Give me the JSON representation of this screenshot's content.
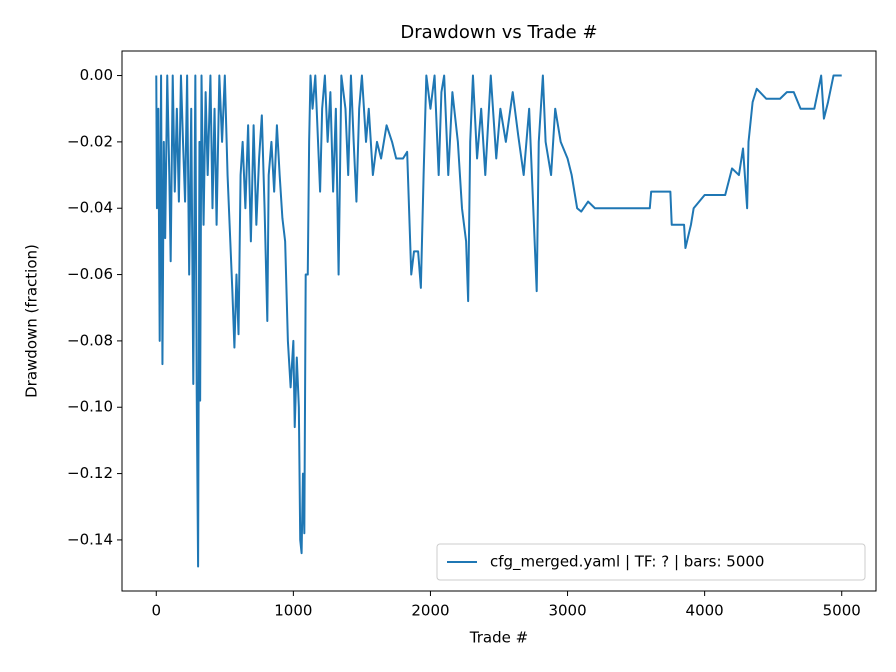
{
  "chart_data": {
    "type": "line",
    "title": "Drawdown vs Trade #",
    "xlabel": "Trade #",
    "ylabel": "Drawdown (fraction)",
    "x": [
      0,
      5,
      15,
      25,
      35,
      45,
      55,
      65,
      80,
      95,
      105,
      120,
      135,
      150,
      165,
      180,
      195,
      210,
      225,
      240,
      255,
      270,
      285,
      295,
      305,
      315,
      320,
      330,
      345,
      360,
      375,
      395,
      410,
      425,
      440,
      460,
      480,
      500,
      520,
      540,
      555,
      570,
      585,
      600,
      615,
      630,
      650,
      670,
      690,
      710,
      730,
      750,
      770,
      790,
      810,
      820,
      840,
      860,
      880,
      900,
      920,
      940,
      960,
      980,
      1000,
      1010,
      1025,
      1040,
      1050,
      1060,
      1070,
      1080,
      1090,
      1105,
      1115,
      1125,
      1140,
      1160,
      1180,
      1195,
      1210,
      1230,
      1250,
      1270,
      1290,
      1310,
      1330,
      1350,
      1380,
      1400,
      1420,
      1440,
      1460,
      1480,
      1500,
      1530,
      1550,
      1580,
      1610,
      1640,
      1680,
      1720,
      1750,
      1800,
      1830,
      1860,
      1880,
      1910,
      1930,
      1950,
      1970,
      2000,
      2030,
      2060,
      2080,
      2100,
      2130,
      2160,
      2200,
      2230,
      2260,
      2275,
      2290,
      2310,
      2340,
      2370,
      2400,
      2440,
      2480,
      2510,
      2550,
      2600,
      2640,
      2680,
      2720,
      2760,
      2775,
      2790,
      2820,
      2840,
      2880,
      2910,
      2950,
      3000,
      3030,
      3070,
      3100,
      3150,
      3200,
      3600,
      3610,
      3750,
      3760,
      3850,
      3860,
      3900,
      3920,
      4000,
      4150,
      4200,
      4250,
      4280,
      4310,
      4320,
      4350,
      4380,
      4450,
      4550,
      4600,
      4650,
      4700,
      4800,
      4850,
      4870,
      4900,
      4940,
      5000
    ],
    "series": [
      {
        "name": "cfg_merged.yaml | TF: ? | bars: 5000",
        "color": "#1f77b4",
        "values": [
          0,
          -0.04,
          -0.01,
          -0.08,
          0,
          -0.087,
          -0.02,
          -0.049,
          0,
          -0.03,
          -0.056,
          0,
          -0.035,
          -0.01,
          -0.038,
          0,
          -0.02,
          -0.038,
          0,
          -0.06,
          -0.01,
          -0.093,
          0,
          -0.095,
          -0.148,
          -0.02,
          -0.098,
          0,
          -0.045,
          -0.005,
          -0.03,
          0,
          -0.04,
          -0.01,
          -0.045,
          0,
          -0.02,
          0,
          -0.03,
          -0.05,
          -0.065,
          -0.082,
          -0.06,
          -0.078,
          -0.03,
          -0.02,
          -0.04,
          -0.015,
          -0.05,
          -0.015,
          -0.045,
          -0.025,
          -0.012,
          -0.04,
          -0.074,
          -0.03,
          -0.02,
          -0.035,
          -0.015,
          -0.03,
          -0.043,
          -0.05,
          -0.08,
          -0.094,
          -0.08,
          -0.106,
          -0.085,
          -0.1,
          -0.14,
          -0.144,
          -0.12,
          -0.138,
          -0.06,
          -0.06,
          -0.02,
          0,
          -0.01,
          0,
          -0.02,
          -0.035,
          -0.01,
          0,
          -0.02,
          -0.005,
          -0.035,
          -0.01,
          -0.06,
          0,
          -0.01,
          -0.03,
          0,
          -0.02,
          -0.038,
          -0.01,
          0,
          -0.02,
          -0.01,
          -0.03,
          -0.02,
          -0.025,
          -0.015,
          -0.02,
          -0.025,
          -0.025,
          -0.023,
          -0.06,
          -0.053,
          -0.053,
          -0.064,
          -0.03,
          0,
          -0.01,
          0,
          -0.03,
          -0.005,
          0,
          -0.03,
          -0.005,
          -0.02,
          -0.04,
          -0.05,
          -0.068,
          -0.02,
          0,
          -0.025,
          -0.01,
          -0.03,
          0,
          -0.025,
          -0.01,
          -0.02,
          -0.005,
          -0.018,
          -0.03,
          -0.01,
          -0.05,
          -0.065,
          -0.02,
          0,
          -0.02,
          -0.03,
          -0.01,
          -0.02,
          -0.025,
          -0.03,
          -0.04,
          -0.041,
          -0.038,
          -0.04,
          -0.04,
          -0.035,
          -0.035,
          -0.045,
          -0.045,
          -0.052,
          -0.045,
          -0.04,
          -0.036,
          -0.036,
          -0.028,
          -0.03,
          -0.022,
          -0.04,
          -0.02,
          -0.008,
          -0.004,
          -0.007,
          -0.007,
          -0.005,
          -0.005,
          -0.01,
          -0.01,
          0,
          -0.013,
          -0.008,
          0,
          0
        ]
      }
    ],
    "xlim": [
      -250,
      5250
    ],
    "xticks": [
      0,
      1000,
      2000,
      3000,
      4000,
      5000
    ],
    "ylim": [
      -0.1554,
      0.0074
    ],
    "yticks": [
      {
        "value": 0,
        "label": "0.00"
      },
      {
        "value": -0.02,
        "label": "−0.02"
      },
      {
        "value": -0.04,
        "label": "−0.04"
      },
      {
        "value": -0.06,
        "label": "−0.06"
      },
      {
        "value": -0.08,
        "label": "−0.08"
      },
      {
        "value": -0.1,
        "label": "−0.10"
      },
      {
        "value": -0.12,
        "label": "−0.12"
      },
      {
        "value": -0.14,
        "label": "−0.14"
      }
    ],
    "legend": "lower right",
    "grid": false
  }
}
